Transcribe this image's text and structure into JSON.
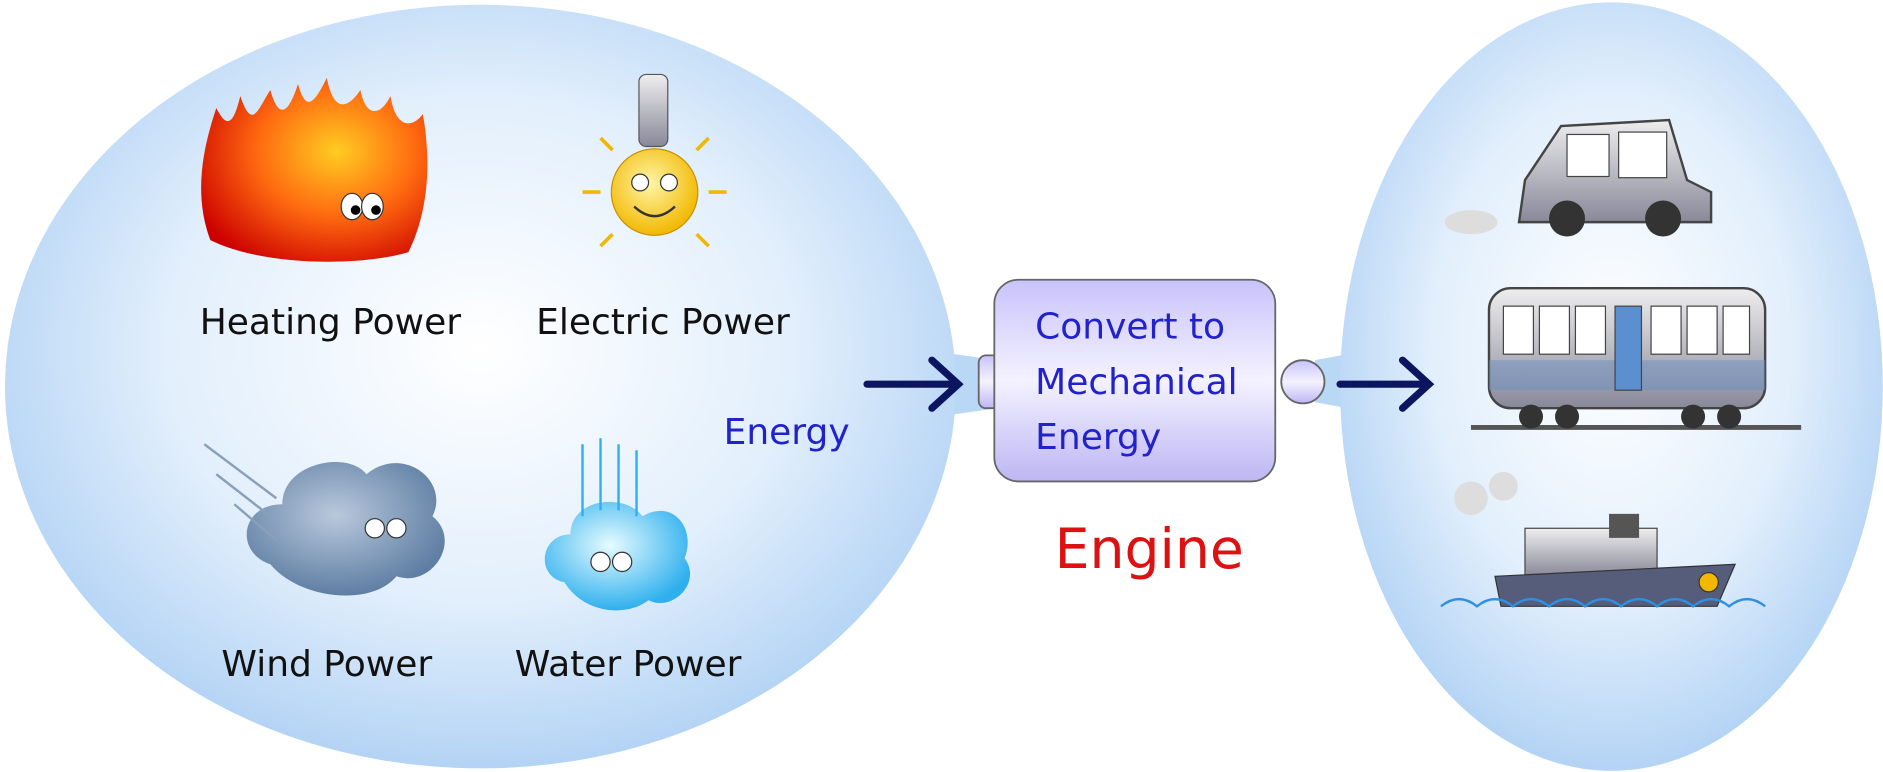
{
  "sources": {
    "items": [
      {
        "label": "Heating Power"
      },
      {
        "label": "Electric Power"
      },
      {
        "label": "Wind Power"
      },
      {
        "label": "Water Power"
      }
    ],
    "label": "Energy"
  },
  "engine": {
    "lines": [
      "Convert to",
      "Mechanical",
      "Energy"
    ],
    "label": "Engine"
  }
}
